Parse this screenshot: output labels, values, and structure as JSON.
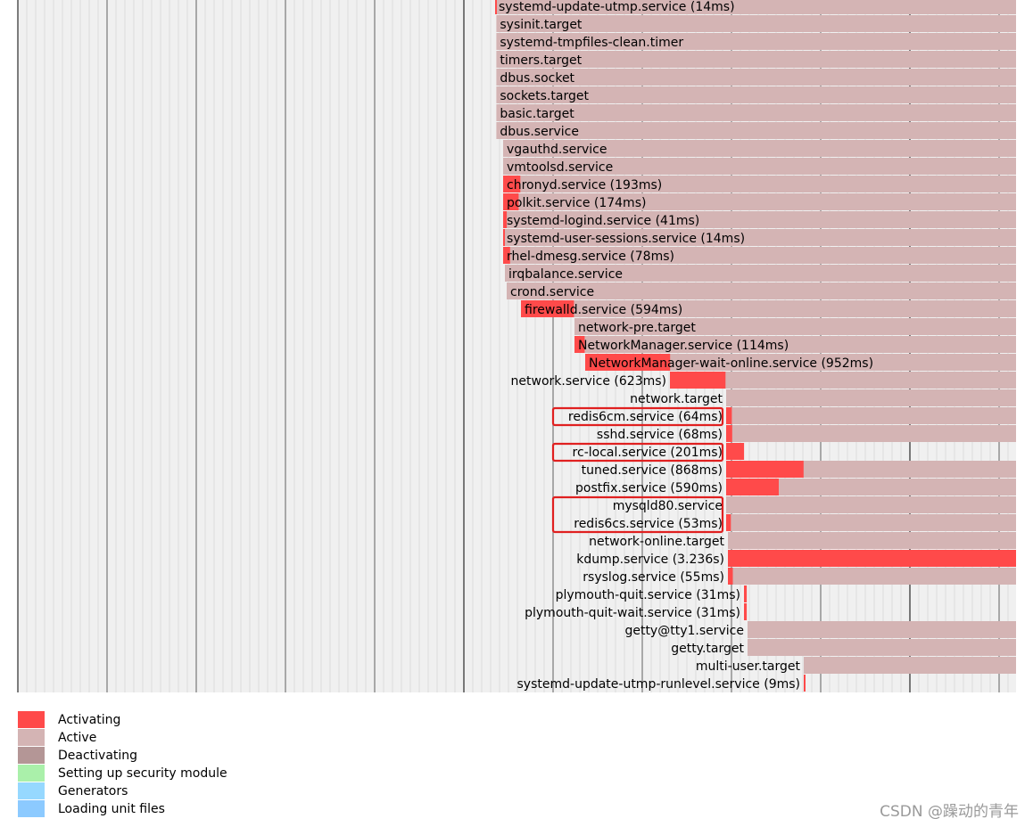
{
  "chart_data": {
    "type": "gantt",
    "xlabel": "",
    "ylabel": "",
    "colors": {
      "activating": "#ff4a4a",
      "active": "#d4b4b4",
      "deactivating": "#b49696",
      "security": "#aaf0aa",
      "generators": "#96d8ff",
      "unitfiles": "#8ccaff",
      "highlight": "#e02020"
    },
    "units": [
      {
        "label": "systemd-update-utmp.service (14ms)",
        "start": 5350,
        "act": 14,
        "end": 11600
      },
      {
        "label": "sysinit.target",
        "start": 5364,
        "act": 0,
        "end": 11600
      },
      {
        "label": "systemd-tmpfiles-clean.timer",
        "start": 5364,
        "act": 0,
        "end": 11600
      },
      {
        "label": "timers.target",
        "start": 5364,
        "act": 0,
        "end": 11600
      },
      {
        "label": "dbus.socket",
        "start": 5364,
        "act": 0,
        "end": 11600
      },
      {
        "label": "sockets.target",
        "start": 5364,
        "act": 0,
        "end": 11600
      },
      {
        "label": "basic.target",
        "start": 5364,
        "act": 0,
        "end": 11600
      },
      {
        "label": "dbus.service",
        "start": 5364,
        "act": 0,
        "end": 11600
      },
      {
        "label": "vgauthd.service",
        "start": 5440,
        "act": 0,
        "end": 11600
      },
      {
        "label": "vmtoolsd.service",
        "start": 5440,
        "act": 0,
        "end": 11600
      },
      {
        "label": "chronyd.service (193ms)",
        "start": 5440,
        "act": 193,
        "end": 11600
      },
      {
        "label": "polkit.service (174ms)",
        "start": 5440,
        "act": 174,
        "end": 11600
      },
      {
        "label": "systemd-logind.service (41ms)",
        "start": 5440,
        "act": 41,
        "end": 11600
      },
      {
        "label": "systemd-user-sessions.service (14ms)",
        "start": 5440,
        "act": 14,
        "end": 11600
      },
      {
        "label": "rhel-dmesg.service (78ms)",
        "start": 5440,
        "act": 78,
        "end": 11600
      },
      {
        "label": "irqbalance.service",
        "start": 5460,
        "act": 0,
        "end": 11600
      },
      {
        "label": "crond.service",
        "start": 5480,
        "act": 0,
        "end": 11600
      },
      {
        "label": "firewalld.service (594ms)",
        "start": 5640,
        "act": 594,
        "end": 11600
      },
      {
        "label": "network-pre.target",
        "start": 6240,
        "act": 0,
        "end": 11600
      },
      {
        "label": "NetworkManager.service (114ms)",
        "start": 6240,
        "act": 114,
        "end": 11600
      },
      {
        "label": "NetworkManager-wait-online.service (952ms)",
        "start": 6360,
        "act": 952,
        "end": 11600
      },
      {
        "label": "network.service (623ms)",
        "start": 7310,
        "act": 623,
        "end": 11600
      },
      {
        "label": "network.target",
        "start": 7940,
        "act": 0,
        "end": 11600
      },
      {
        "label": "redis6cm.service (64ms)",
        "start": 7940,
        "act": 64,
        "end": 11600,
        "highlight": true
      },
      {
        "label": "sshd.service (68ms)",
        "start": 7940,
        "act": 68,
        "end": 11600
      },
      {
        "label": "rc-local.service (201ms)",
        "start": 7940,
        "act": 201,
        "end": 8140,
        "highlight": true
      },
      {
        "label": "tuned.service (868ms)",
        "start": 7940,
        "act": 868,
        "end": 11600
      },
      {
        "label": "postfix.service (590ms)",
        "start": 7940,
        "act": 590,
        "end": 11600
      },
      {
        "label": "mysqld80.service",
        "start": 7940,
        "act": 0,
        "end": 11600,
        "highlight": true
      },
      {
        "label": "redis6cs.service (53ms)",
        "start": 7940,
        "act": 53,
        "end": 11600,
        "highlight": true
      },
      {
        "label": "network-online.target",
        "start": 7960,
        "act": 0,
        "end": 11600
      },
      {
        "label": "kdump.service (3.236s)",
        "start": 7960,
        "act": 3236,
        "end": 11600
      },
      {
        "label": "rsyslog.service (55ms)",
        "start": 7960,
        "act": 55,
        "end": 11600
      },
      {
        "label": "plymouth-quit.service (31ms)",
        "start": 8140,
        "act": 31,
        "end": 8171
      },
      {
        "label": "plymouth-quit-wait.service (31ms)",
        "start": 8140,
        "act": 31,
        "end": 8171
      },
      {
        "label": "getty@tty1.service",
        "start": 8180,
        "act": 0,
        "end": 11600
      },
      {
        "label": "getty.target",
        "start": 8180,
        "act": 0,
        "end": 11600
      },
      {
        "label": "multi-user.target",
        "start": 8810,
        "act": 0,
        "end": 11600
      },
      {
        "label": "systemd-update-utmp-runlevel.service (9ms)",
        "start": 8810,
        "act": 9,
        "end": 8819
      }
    ],
    "legend": [
      {
        "label": "Activating",
        "key": "activating"
      },
      {
        "label": "Active",
        "key": "active"
      },
      {
        "label": "Deactivating",
        "key": "deactivating"
      },
      {
        "label": "Setting up security module",
        "key": "security"
      },
      {
        "label": "Generators",
        "key": "generators"
      },
      {
        "label": "Loading unit files",
        "key": "unitfiles"
      }
    ]
  },
  "watermark": "CSDN @躁动的青年"
}
